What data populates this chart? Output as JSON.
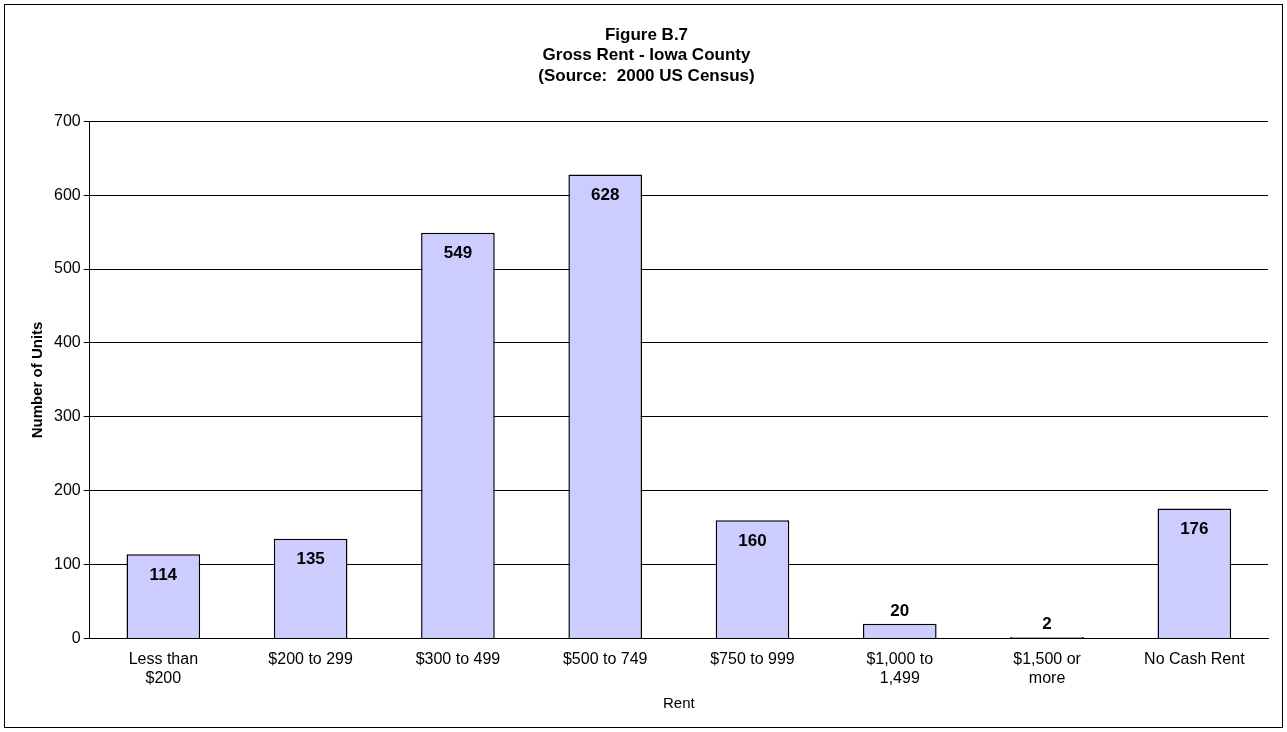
{
  "chart_data": {
    "type": "bar",
    "title": "Figure B.7\nGross Rent - Iowa County\n(Source:  2000 US Census)",
    "xlabel": "Rent",
    "ylabel": "Number of Units",
    "categories": [
      "Less than $200",
      "$200 to 299",
      "$300 to 499",
      "$500 to 749",
      "$750 to 999",
      "$1,000 to 1,499",
      "$1,500 or more",
      "No Cash Rent"
    ],
    "values": [
      114,
      135,
      549,
      628,
      160,
      20,
      2,
      176
    ],
    "color": "#ccccff",
    "ylim": [
      0,
      700
    ],
    "yticks": [
      0,
      100,
      200,
      300,
      400,
      500,
      600,
      700
    ],
    "grid": "y",
    "legend": false,
    "data_labels": true
  }
}
